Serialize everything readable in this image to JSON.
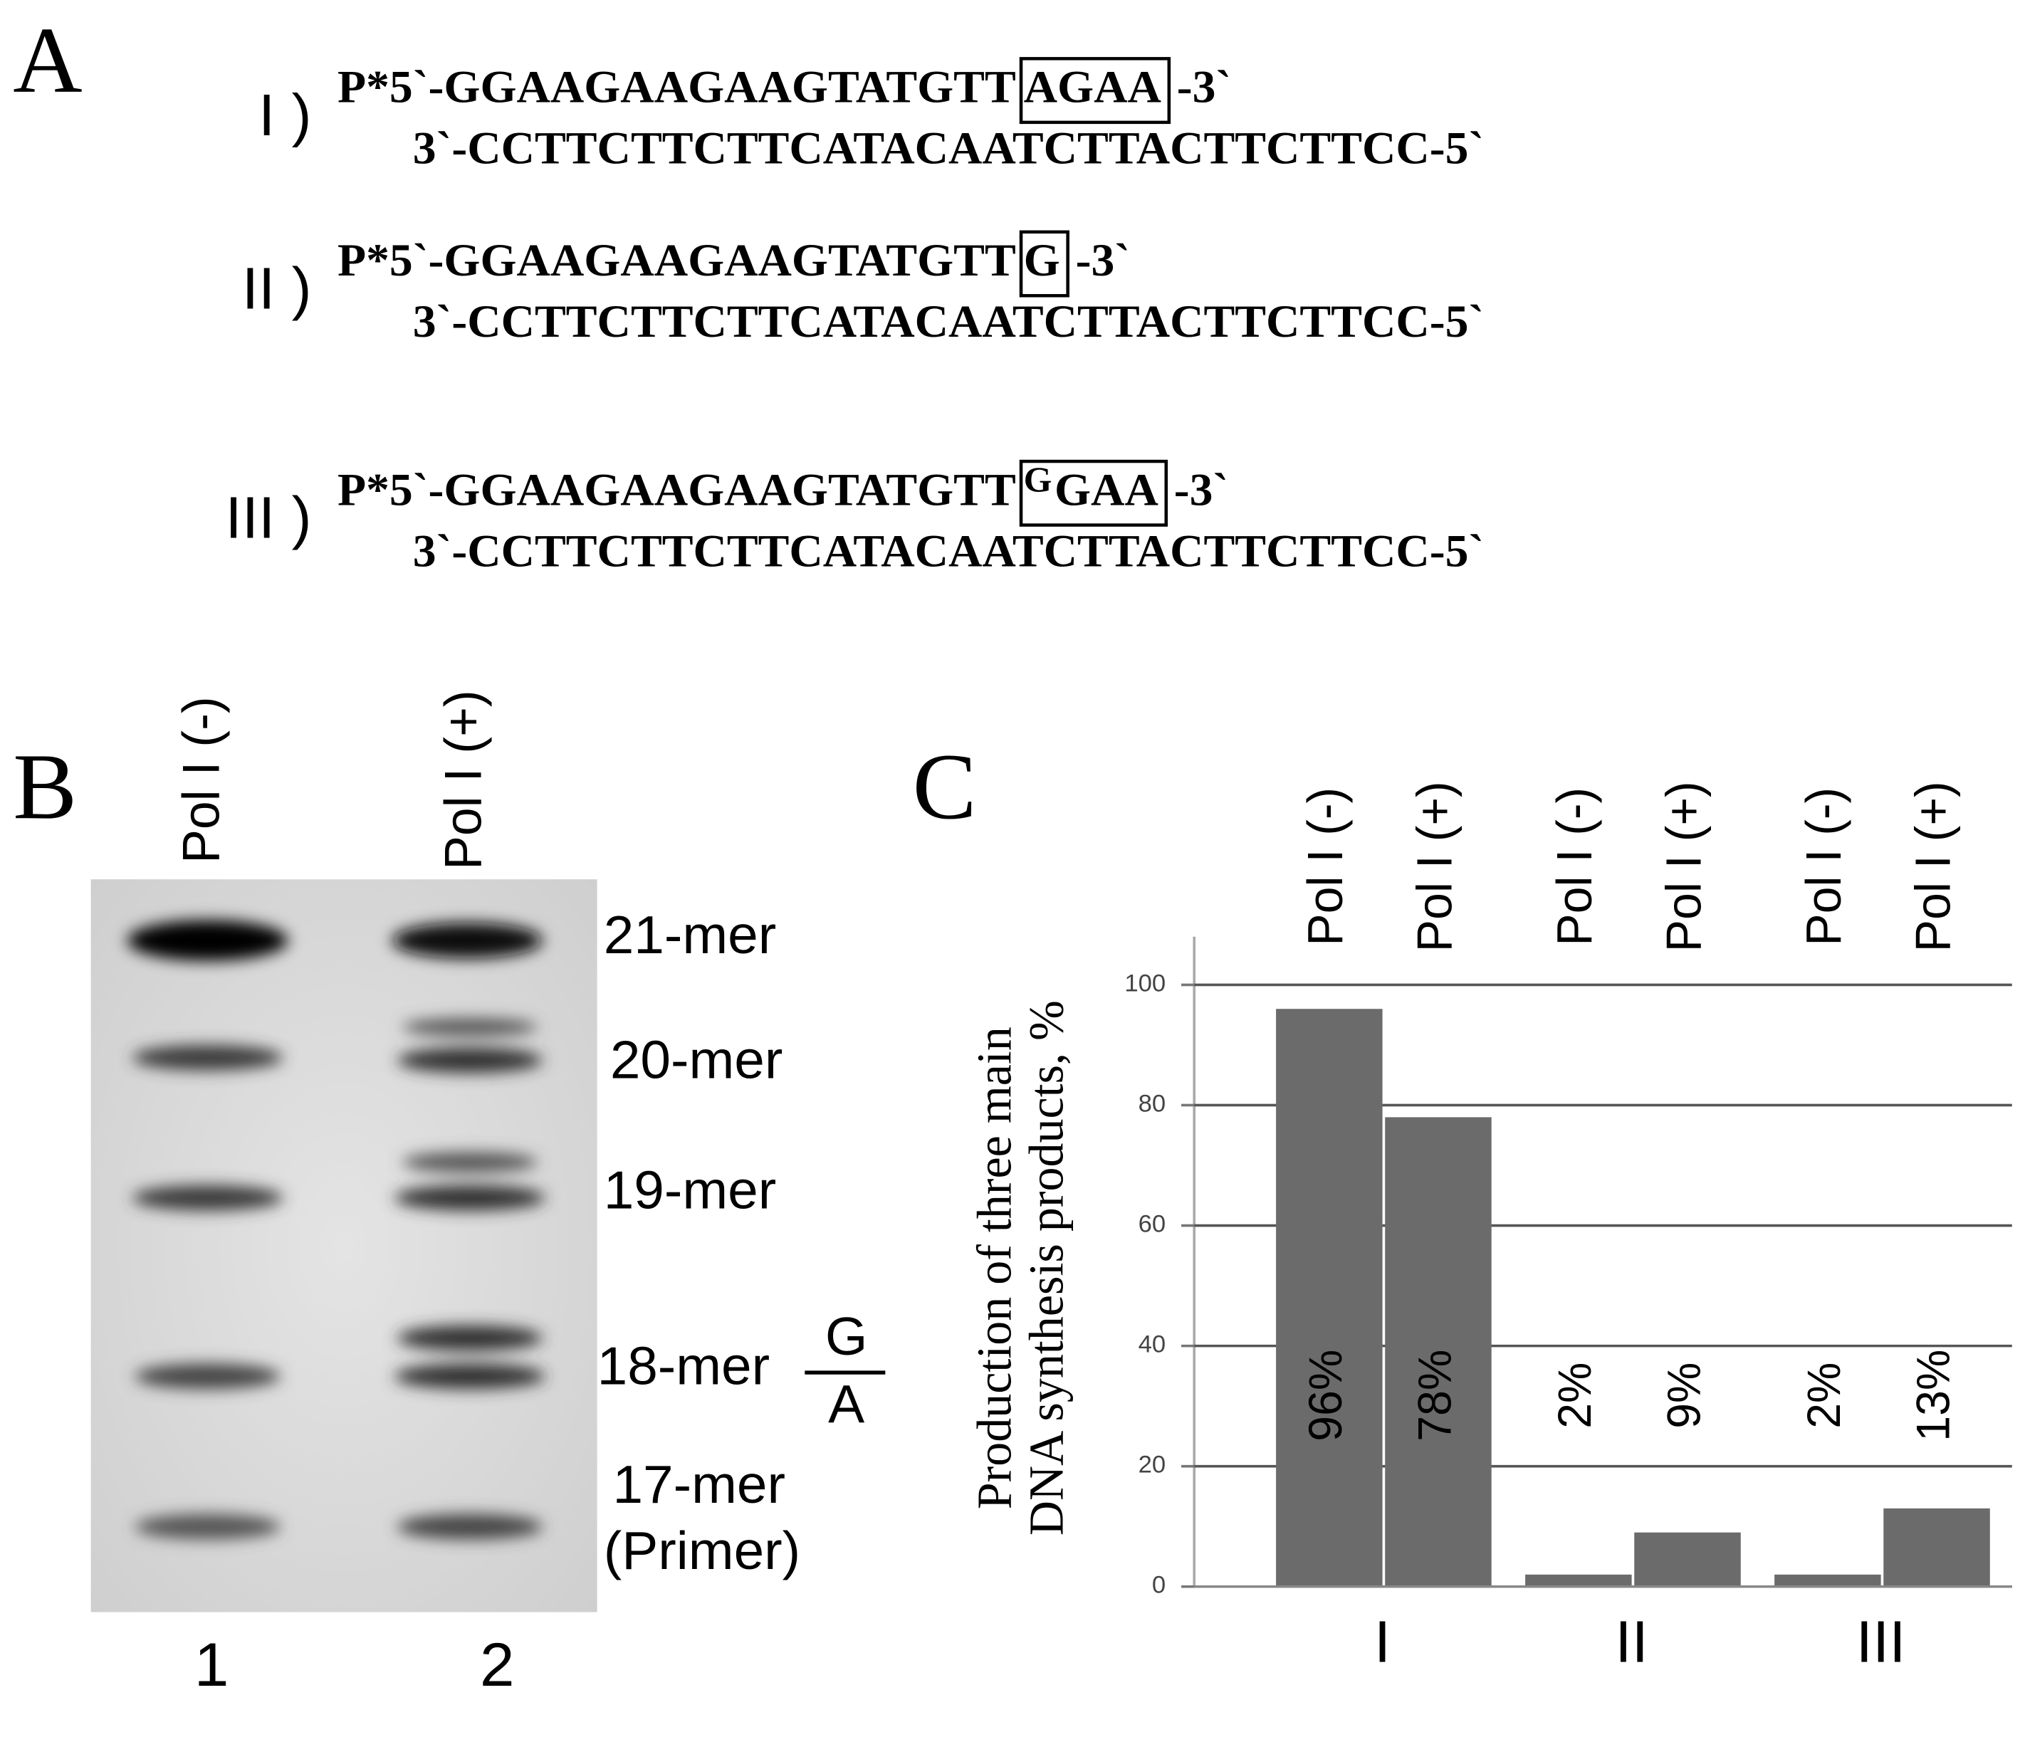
{
  "panel_a": {
    "letter": "A",
    "rows": [
      {
        "label": "I )",
        "top_prefix": "P*5`-GGAAGAAGAAGTATGTT",
        "boxed_parts": [
          {
            "text": "AGAA"
          }
        ],
        "top_suffix": "-3`",
        "bottom": "3`-CCTTCTTCTTCATACAATCTTACTTCTTCC-5`"
      },
      {
        "label": "II )",
        "top_prefix": "P*5`-GGAAGAAGAAGTATGTT",
        "boxed_parts": [
          {
            "text": "G"
          }
        ],
        "top_suffix": "-3`",
        "bottom": "3`-CCTTCTTCTTCATACAATCTTACTTCTTCC-5`"
      },
      {
        "label": "III )",
        "top_prefix": "P*5`-GGAAGAAGAAGTATGTT",
        "boxed_parts": [
          {
            "text": "G",
            "raised": true
          },
          {
            "text": "GAA"
          }
        ],
        "top_suffix": "-3`",
        "bottom": "3`-CCTTCTTCTTCATACAATCTTACTTCTTCC-5`"
      }
    ]
  },
  "panel_b": {
    "letter": "B",
    "lanes": [
      "Pol I (-)",
      "Pol I (+)"
    ],
    "lane_numbers": [
      "1",
      "2"
    ],
    "bands": [
      "21-mer",
      "20-mer",
      "19-mer",
      "18-mer",
      "17-mer",
      "(Primer)"
    ],
    "variant_top": "G",
    "variant_bottom": "A"
  },
  "chart_data": {
    "type": "bar",
    "panel_letter": "C",
    "ylabel": [
      "Production of three main",
      "DNA synthesis products, %"
    ],
    "categories": [
      "I",
      "II",
      "III"
    ],
    "series": [
      {
        "name": "Pol I (-)",
        "color": "#6b6b6b",
        "values": [
          96,
          2,
          2
        ],
        "value_labels": [
          "96%",
          "2%",
          "2%"
        ]
      },
      {
        "name": "Pol I (+)",
        "color": "#6b6b6b",
        "values": [
          78,
          9,
          13
        ],
        "value_labels": [
          "78%",
          "9%",
          "13%"
        ]
      }
    ],
    "ylim": [
      0,
      108
    ],
    "yticks": [
      0,
      20,
      40,
      60,
      80,
      100
    ],
    "grid": true
  }
}
